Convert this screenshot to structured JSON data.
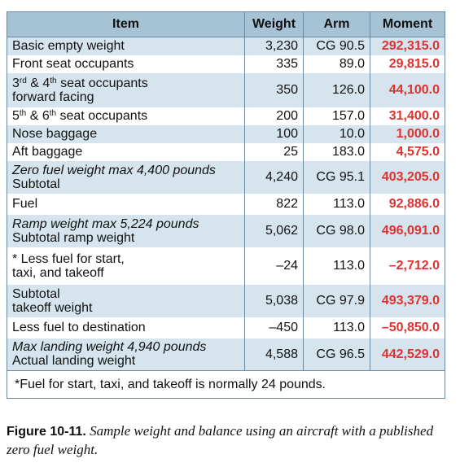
{
  "table": {
    "headers": [
      "Item",
      "Weight",
      "Arm",
      "Moment"
    ],
    "rows": [
      {
        "lines": [
          "Basic empty weight"
        ],
        "weight": "3,230",
        "arm": "CG 90.5",
        "moment": "292,315.0"
      },
      {
        "lines": [
          "Front seat occupants"
        ],
        "weight": "335",
        "arm": "89.0",
        "moment": "29,815.0"
      },
      {
        "ord_a": "3",
        "ord_a_suffix": "rd",
        "ord_mid": " & 4",
        "ord_b_suffix": "th",
        "ord_rest": " seat occupants",
        "line2": "forward facing",
        "weight": "350",
        "arm": "126.0",
        "moment": "44,100.0"
      },
      {
        "ord_a": "5",
        "ord_a_suffix": "th",
        "ord_mid": " & 6",
        "ord_b_suffix": "th",
        "ord_rest": " seat occupants",
        "weight": "200",
        "arm": "157.0",
        "moment": "31,400.0"
      },
      {
        "lines": [
          "Nose baggage"
        ],
        "weight": "100",
        "arm": "10.0",
        "moment": "1,000.0"
      },
      {
        "lines": [
          "Aft baggage"
        ],
        "weight": "25",
        "arm": "183.0",
        "moment": "4,575.0"
      },
      {
        "italic": "Zero fuel weight max 4,400 pounds",
        "lines": [
          "Subtotal"
        ],
        "weight": "4,240",
        "arm": "CG 95.1",
        "moment": "403,205.0"
      },
      {
        "lines": [
          "Fuel"
        ],
        "weight": "822",
        "arm": "113.0",
        "moment": "92,886.0"
      },
      {
        "italic": "Ramp weight max 5,224 pounds",
        "lines": [
          "Subtotal ramp weight"
        ],
        "weight": "5,062",
        "arm": "CG 98.0",
        "moment": "496,091.0"
      },
      {
        "lines": [
          "* Less fuel for start,",
          "taxi, and takeoff"
        ],
        "weight": "–24",
        "arm": "113.0",
        "moment": "–2,712.0"
      },
      {
        "lines": [
          "Subtotal",
          "takeoff weight"
        ],
        "weight": "5,038",
        "arm": "CG 97.9",
        "moment": "493,379.0"
      },
      {
        "lines": [
          "Less fuel to destination"
        ],
        "weight": "–450",
        "arm": "113.0",
        "moment": "–50,850.0"
      },
      {
        "italic": "Max landing weight 4,940 pounds",
        "lines": [
          "Actual landing weight"
        ],
        "weight": "4,588",
        "arm": "CG 96.5",
        "moment": "442,529.0"
      }
    ],
    "footnote": "*Fuel for start, taxi, and takeoff is normally 24 pounds."
  },
  "caption": {
    "label": "Figure 10-11.",
    "text": " Sample weight and balance using an aircraft with a published zero fuel weight."
  }
}
